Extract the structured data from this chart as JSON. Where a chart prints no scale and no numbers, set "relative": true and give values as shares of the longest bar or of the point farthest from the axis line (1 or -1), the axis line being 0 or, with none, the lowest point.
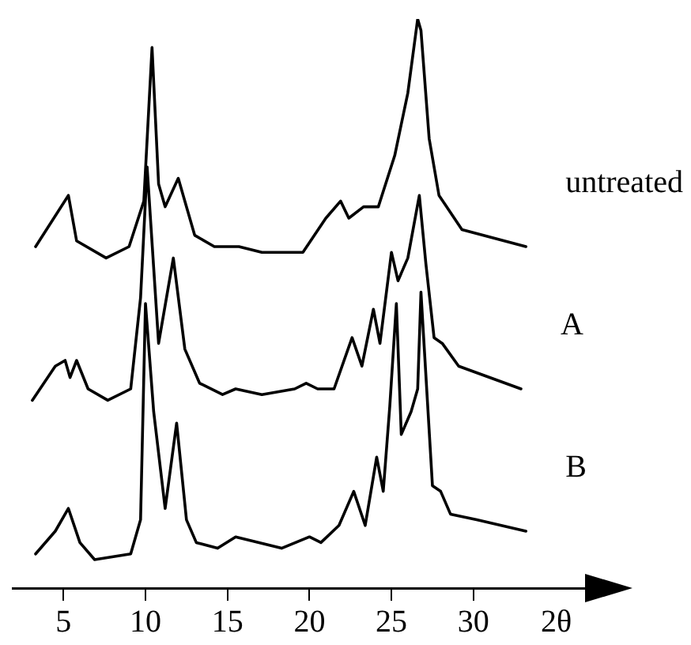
{
  "chart_data": {
    "type": "line",
    "relative": true,
    "xlabel": "2θ",
    "xlim": [
      1.9,
      37
    ],
    "xticks": [
      5,
      10,
      15,
      20,
      25,
      30
    ],
    "grid": false,
    "legend": false,
    "marker": "none",
    "line_style": "solid",
    "series": [
      {
        "name": "untreated",
        "color": "#000000",
        "x": [
          3.3,
          5.3,
          5.8,
          7.6,
          9.0,
          9.9,
          10.4,
          10.8,
          11.2,
          12.0,
          13.0,
          14.2,
          15.7,
          17.1,
          19.6,
          21.0,
          21.9,
          22.4,
          23.3,
          24.2,
          25.2,
          26.0,
          26.6,
          26.8,
          27.3,
          27.9,
          29.3,
          33.2
        ],
        "values": [
          0.6,
          0.69,
          0.61,
          0.58,
          0.6,
          0.68,
          0.95,
          0.71,
          0.67,
          0.72,
          0.62,
          0.6,
          0.6,
          0.59,
          0.59,
          0.65,
          0.68,
          0.65,
          0.67,
          0.67,
          0.76,
          0.87,
          1,
          0.98,
          0.79,
          0.69,
          0.63,
          0.6
        ]
      },
      {
        "name": "A",
        "color": "#000000",
        "x": [
          3.1,
          4.5,
          5.1,
          5.4,
          5.8,
          6.5,
          7.7,
          9.1,
          9.7,
          10.1,
          10.8,
          11.7,
          12.4,
          13.3,
          14.7,
          15.5,
          17.1,
          19.1,
          19.8,
          20.5,
          21.5,
          22.6,
          23.2,
          23.9,
          24.3,
          25.0,
          25.4,
          26.0,
          26.7,
          27.1,
          27.6,
          28.1,
          29.1,
          32.9
        ],
        "values": [
          0.33,
          0.39,
          0.4,
          0.37,
          0.4,
          0.35,
          0.33,
          0.35,
          0.51,
          0.74,
          0.43,
          0.58,
          0.42,
          0.36,
          0.34,
          0.35,
          0.34,
          0.35,
          0.36,
          0.35,
          0.35,
          0.44,
          0.39,
          0.49,
          0.43,
          0.59,
          0.54,
          0.58,
          0.69,
          0.57,
          0.44,
          0.43,
          0.39,
          0.35
        ]
      },
      {
        "name": "B",
        "color": "#000000",
        "x": [
          3.3,
          4.5,
          5.3,
          6.0,
          6.9,
          9.1,
          9.7,
          10.0,
          10.5,
          11.2,
          11.9,
          12.5,
          13.1,
          14.4,
          15.5,
          18.3,
          20.0,
          20.7,
          21.8,
          22.7,
          23.4,
          24.1,
          24.5,
          24.9,
          25.3,
          25.6,
          26.2,
          26.6,
          26.8,
          27.5,
          28.0,
          28.6,
          30.2,
          33.2
        ],
        "values": [
          0.06,
          0.1,
          0.14,
          0.08,
          0.05,
          0.06,
          0.12,
          0.5,
          0.31,
          0.14,
          0.29,
          0.12,
          0.08,
          0.07,
          0.09,
          0.07,
          0.09,
          0.08,
          0.11,
          0.17,
          0.11,
          0.23,
          0.17,
          0.32,
          0.5,
          0.27,
          0.31,
          0.35,
          0.52,
          0.18,
          0.17,
          0.13,
          0.12,
          0.1
        ]
      }
    ]
  }
}
